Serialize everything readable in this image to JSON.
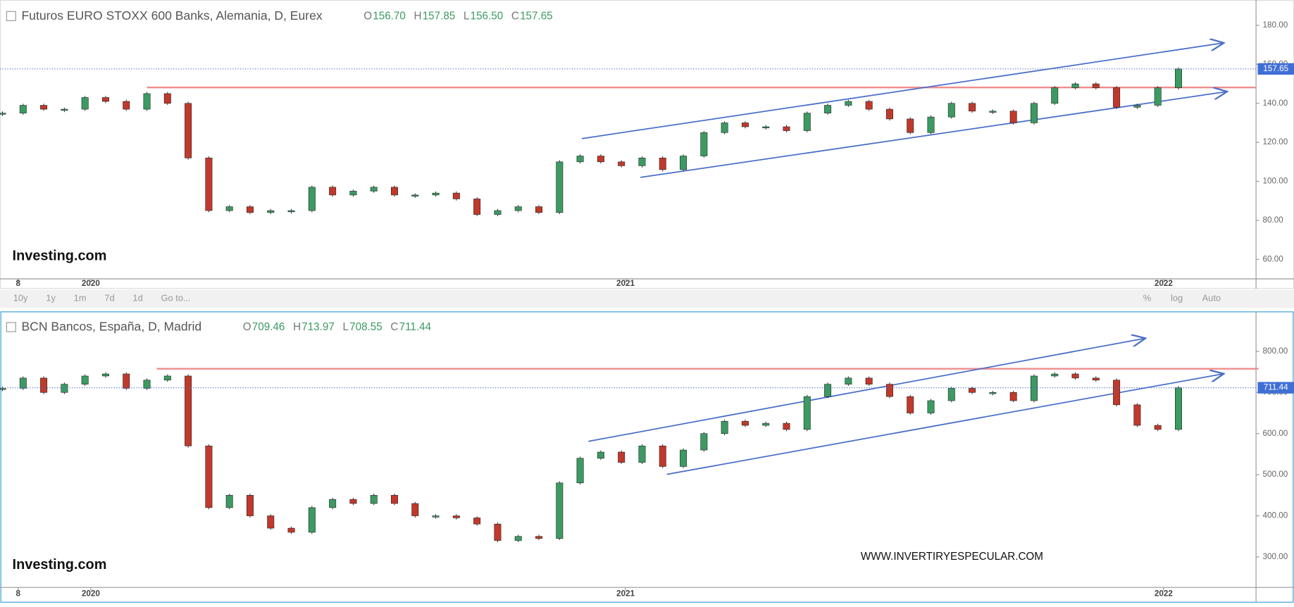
{
  "chart_data": [
    {
      "type": "candlestick",
      "title": "Futuros EURO STOXX 600 Banks, Alemania, D, Eurex",
      "ohlc": [
        {
          "label": "O",
          "value": "156.70"
        },
        {
          "label": "H",
          "value": "157.85"
        },
        {
          "label": "L",
          "value": "156.50"
        },
        {
          "label": "C",
          "value": "157.65"
        }
      ],
      "last_price": "157.65",
      "series": [
        {
          "name": "Close",
          "up_color": "#3c9a62",
          "down_color": "#c0392b",
          "values": [
            135,
            139,
            137,
            137,
            143,
            141,
            137,
            145,
            140,
            112,
            85,
            87,
            84,
            85,
            85,
            97,
            93,
            95,
            97,
            93,
            93,
            94,
            91,
            83,
            85,
            87,
            84,
            110,
            113,
            110,
            108,
            112,
            106,
            113,
            125,
            130,
            128,
            128,
            126,
            135,
            139,
            141,
            137,
            132,
            125,
            133,
            140,
            136,
            136,
            130,
            140,
            148,
            150,
            148,
            138,
            139,
            148,
            157.65
          ]
        }
      ],
      "ylim": [
        50,
        193
      ],
      "yticks": [
        {
          "value": 60,
          "label": "60.00"
        },
        {
          "value": 80,
          "label": "80.00"
        },
        {
          "value": 100,
          "label": "100.00"
        },
        {
          "value": 120,
          "label": "120.00"
        },
        {
          "value": 140,
          "label": "140.00"
        },
        {
          "value": 160,
          "label": "160.00"
        },
        {
          "value": 180,
          "label": "180.00"
        }
      ],
      "xticks": [
        {
          "value": 0.76,
          "label": "8"
        },
        {
          "value": 4.28,
          "label": "2020"
        },
        {
          "value": 30.2,
          "label": "2021"
        },
        {
          "value": 56.28,
          "label": "2022"
        }
      ],
      "watermark": "Investing.com"
    },
    {
      "type": "candlestick",
      "title": "BCN Bancos, España, D, Madrid",
      "ohlc": [
        {
          "label": "O",
          "value": "709.46"
        },
        {
          "label": "H",
          "value": "713.97"
        },
        {
          "label": "L",
          "value": "708.55"
        },
        {
          "label": "C",
          "value": "711.44"
        }
      ],
      "last_price": "711.44",
      "series": [
        {
          "name": "Close",
          "up_color": "#3c9a62",
          "down_color": "#c0392b",
          "values": [
            710,
            735,
            700,
            720,
            740,
            745,
            710,
            730,
            740,
            570,
            420,
            450,
            400,
            370,
            360,
            420,
            440,
            430,
            450,
            430,
            400,
            400,
            395,
            380,
            340,
            350,
            345,
            480,
            540,
            555,
            530,
            570,
            520,
            560,
            600,
            630,
            620,
            625,
            610,
            690,
            720,
            735,
            720,
            690,
            650,
            680,
            710,
            700,
            700,
            680,
            740,
            745,
            735,
            730,
            670,
            620,
            610,
            711.44
          ]
        }
      ],
      "ylim": [
        226,
        896
      ],
      "yticks": [
        {
          "value": 300,
          "label": "300.00"
        },
        {
          "value": 400,
          "label": "400.00"
        },
        {
          "value": 500,
          "label": "500.00"
        },
        {
          "value": 600,
          "label": "600.00"
        },
        {
          "value": 700,
          "label": "700.00"
        },
        {
          "value": 800,
          "label": "800.00"
        }
      ],
      "xticks": [
        {
          "value": 0.76,
          "label": "8"
        },
        {
          "value": 4.28,
          "label": "2020"
        },
        {
          "value": 30.2,
          "label": "2021"
        },
        {
          "value": 56.28,
          "label": "2022"
        }
      ],
      "watermark": "Investing.com"
    }
  ],
  "toolbar": {
    "left": [
      "10y",
      "1y",
      "1m",
      "7d",
      "1d",
      "Go to..."
    ],
    "right": [
      "%",
      "log",
      "Auto"
    ]
  },
  "site_watermark": "WWW.INVERTIRYESPECULAR.COM"
}
